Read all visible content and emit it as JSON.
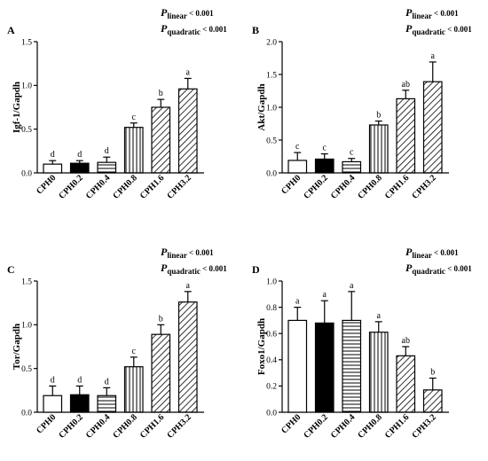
{
  "chart_data": [
    {
      "type": "bar",
      "panel": "A",
      "ylabel": "Igf-1/Gapdh",
      "ylim": [
        0,
        1.5
      ],
      "yticks": [
        "0.0",
        "0.5",
        "1.0",
        "1.5"
      ],
      "categories": [
        "CPH0",
        "CPH0.2",
        "CPH0.4",
        "CPH0.8",
        "CPH1.6",
        "CPH3.2"
      ],
      "values": [
        0.1,
        0.11,
        0.12,
        0.52,
        0.75,
        0.96
      ],
      "errors": [
        0.04,
        0.03,
        0.06,
        0.05,
        0.09,
        0.12
      ],
      "letters": [
        "d",
        "d",
        "d",
        "c",
        "b",
        "a"
      ],
      "p_linear": {
        "symbol": "P",
        "subscript": "linear",
        "text": " < 0.001"
      },
      "p_quadratic": {
        "symbol": "P",
        "subscript": "quadratic",
        "text": " < 0.001"
      }
    },
    {
      "type": "bar",
      "panel": "B",
      "ylabel": "Akt/Gapdh",
      "ylim": [
        0,
        2.0
      ],
      "yticks": [
        "0.0",
        "0.5",
        "1.0",
        "1.5",
        "2.0"
      ],
      "categories": [
        "CPH0",
        "CPH0.2",
        "CPH0.4",
        "CPH0.8",
        "CPH1.6",
        "CPH3.2"
      ],
      "values": [
        0.19,
        0.21,
        0.17,
        0.73,
        1.13,
        1.39
      ],
      "errors": [
        0.12,
        0.08,
        0.05,
        0.06,
        0.13,
        0.3
      ],
      "letters": [
        "c",
        "c",
        "c",
        "b",
        "ab",
        "a"
      ],
      "p_linear": {
        "symbol": "P",
        "subscript": "linear",
        "text": " < 0.001"
      },
      "p_quadratic": {
        "symbol": "P",
        "subscript": "quadratic",
        "text": " < 0.001"
      }
    },
    {
      "type": "bar",
      "panel": "C",
      "ylabel": "Tor/Gapdh",
      "ylim": [
        0,
        1.5
      ],
      "yticks": [
        "0.0",
        "0.5",
        "1.0",
        "1.5"
      ],
      "categories": [
        "CPH0",
        "CPH0.2",
        "CPH0.4",
        "CPH0.8",
        "CPH1.6",
        "CPH3.2"
      ],
      "values": [
        0.19,
        0.2,
        0.19,
        0.52,
        0.89,
        1.26
      ],
      "errors": [
        0.11,
        0.1,
        0.09,
        0.11,
        0.11,
        0.12
      ],
      "letters": [
        "d",
        "d",
        "d",
        "c",
        "b",
        "a"
      ],
      "p_linear": {
        "symbol": "P",
        "subscript": "linear",
        "text": " < 0.001"
      },
      "p_quadratic": {
        "symbol": "P",
        "subscript": "quadratic",
        "text": " < 0.001"
      }
    },
    {
      "type": "bar",
      "panel": "D",
      "ylabel": "Foxo1/Gapdh",
      "ylim": [
        0,
        1.0
      ],
      "yticks": [
        "0.0",
        "0.2",
        "0.4",
        "0.6",
        "0.8",
        "1.0"
      ],
      "categories": [
        "CPH0",
        "CPH0.2",
        "CPH0.4",
        "CPH0.8",
        "CPH1.6",
        "CPH3.2"
      ],
      "values": [
        0.7,
        0.68,
        0.7,
        0.61,
        0.43,
        0.17
      ],
      "errors": [
        0.1,
        0.17,
        0.22,
        0.08,
        0.07,
        0.09
      ],
      "letters": [
        "a",
        "a",
        "a",
        "a",
        "ab",
        "b"
      ],
      "p_linear": {
        "symbol": "P",
        "subscript": "linear",
        "text": " < 0.001"
      },
      "p_quadratic": {
        "symbol": "P",
        "subscript": "quadratic",
        "text": " < 0.001"
      }
    }
  ],
  "bar_styles": [
    "open",
    "solid",
    "horizontal-lines",
    "vertical-lines",
    "diagonal-hatch",
    "diagonal-hatch"
  ],
  "colors": {
    "ink": "#000000",
    "background": "#ffffff"
  }
}
